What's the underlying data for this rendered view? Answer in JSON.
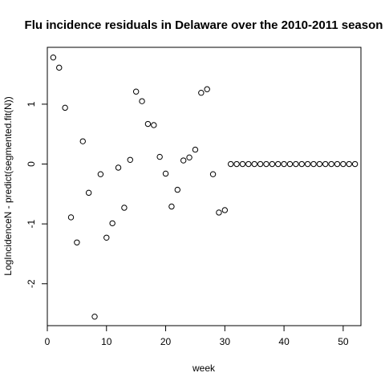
{
  "chart_data": {
    "type": "scatter",
    "title": "Flu incidence residuals in Delaware over the 2010-2011 season",
    "xlabel": "week",
    "ylabel": "LogIncidenceN - predict(segmented.fit(N))",
    "xlim": [
      0,
      53
    ],
    "ylim": [
      -2.7,
      1.95
    ],
    "xticks": [
      0,
      10,
      20,
      30,
      40,
      50
    ],
    "yticks": [
      -2,
      -1,
      0,
      1
    ],
    "grid": false,
    "points": [
      {
        "x": 1,
        "y": 1.78
      },
      {
        "x": 2,
        "y": 1.61
      },
      {
        "x": 3,
        "y": 0.94
      },
      {
        "x": 4,
        "y": -0.89
      },
      {
        "x": 5,
        "y": -1.31
      },
      {
        "x": 6,
        "y": 0.38
      },
      {
        "x": 7,
        "y": -0.48
      },
      {
        "x": 8,
        "y": -2.55
      },
      {
        "x": 9,
        "y": -0.17
      },
      {
        "x": 10,
        "y": -1.23
      },
      {
        "x": 11,
        "y": -0.99
      },
      {
        "x": 12,
        "y": -0.06
      },
      {
        "x": 13,
        "y": -0.73
      },
      {
        "x": 14,
        "y": 0.07
      },
      {
        "x": 15,
        "y": 1.21
      },
      {
        "x": 16,
        "y": 1.05
      },
      {
        "x": 17,
        "y": 0.67
      },
      {
        "x": 18,
        "y": 0.65
      },
      {
        "x": 19,
        "y": 0.12
      },
      {
        "x": 20,
        "y": -0.16
      },
      {
        "x": 21,
        "y": -0.71
      },
      {
        "x": 22,
        "y": -0.43
      },
      {
        "x": 23,
        "y": 0.06
      },
      {
        "x": 24,
        "y": 0.11
      },
      {
        "x": 25,
        "y": 0.24
      },
      {
        "x": 26,
        "y": 1.19
      },
      {
        "x": 27,
        "y": 1.25
      },
      {
        "x": 28,
        "y": -0.17
      },
      {
        "x": 29,
        "y": -0.81
      },
      {
        "x": 30,
        "y": -0.77
      },
      {
        "x": 31,
        "y": 0
      },
      {
        "x": 32,
        "y": 0
      },
      {
        "x": 33,
        "y": 0
      },
      {
        "x": 34,
        "y": 0
      },
      {
        "x": 35,
        "y": 0
      },
      {
        "x": 36,
        "y": 0
      },
      {
        "x": 37,
        "y": 0
      },
      {
        "x": 38,
        "y": 0
      },
      {
        "x": 39,
        "y": 0
      },
      {
        "x": 40,
        "y": 0
      },
      {
        "x": 41,
        "y": 0
      },
      {
        "x": 42,
        "y": 0
      },
      {
        "x": 43,
        "y": 0
      },
      {
        "x": 44,
        "y": 0
      },
      {
        "x": 45,
        "y": 0
      },
      {
        "x": 46,
        "y": 0
      },
      {
        "x": 47,
        "y": 0
      },
      {
        "x": 48,
        "y": 0
      },
      {
        "x": 49,
        "y": 0
      },
      {
        "x": 50,
        "y": 0
      },
      {
        "x": 51,
        "y": 0
      },
      {
        "x": 52,
        "y": 0
      }
    ]
  }
}
